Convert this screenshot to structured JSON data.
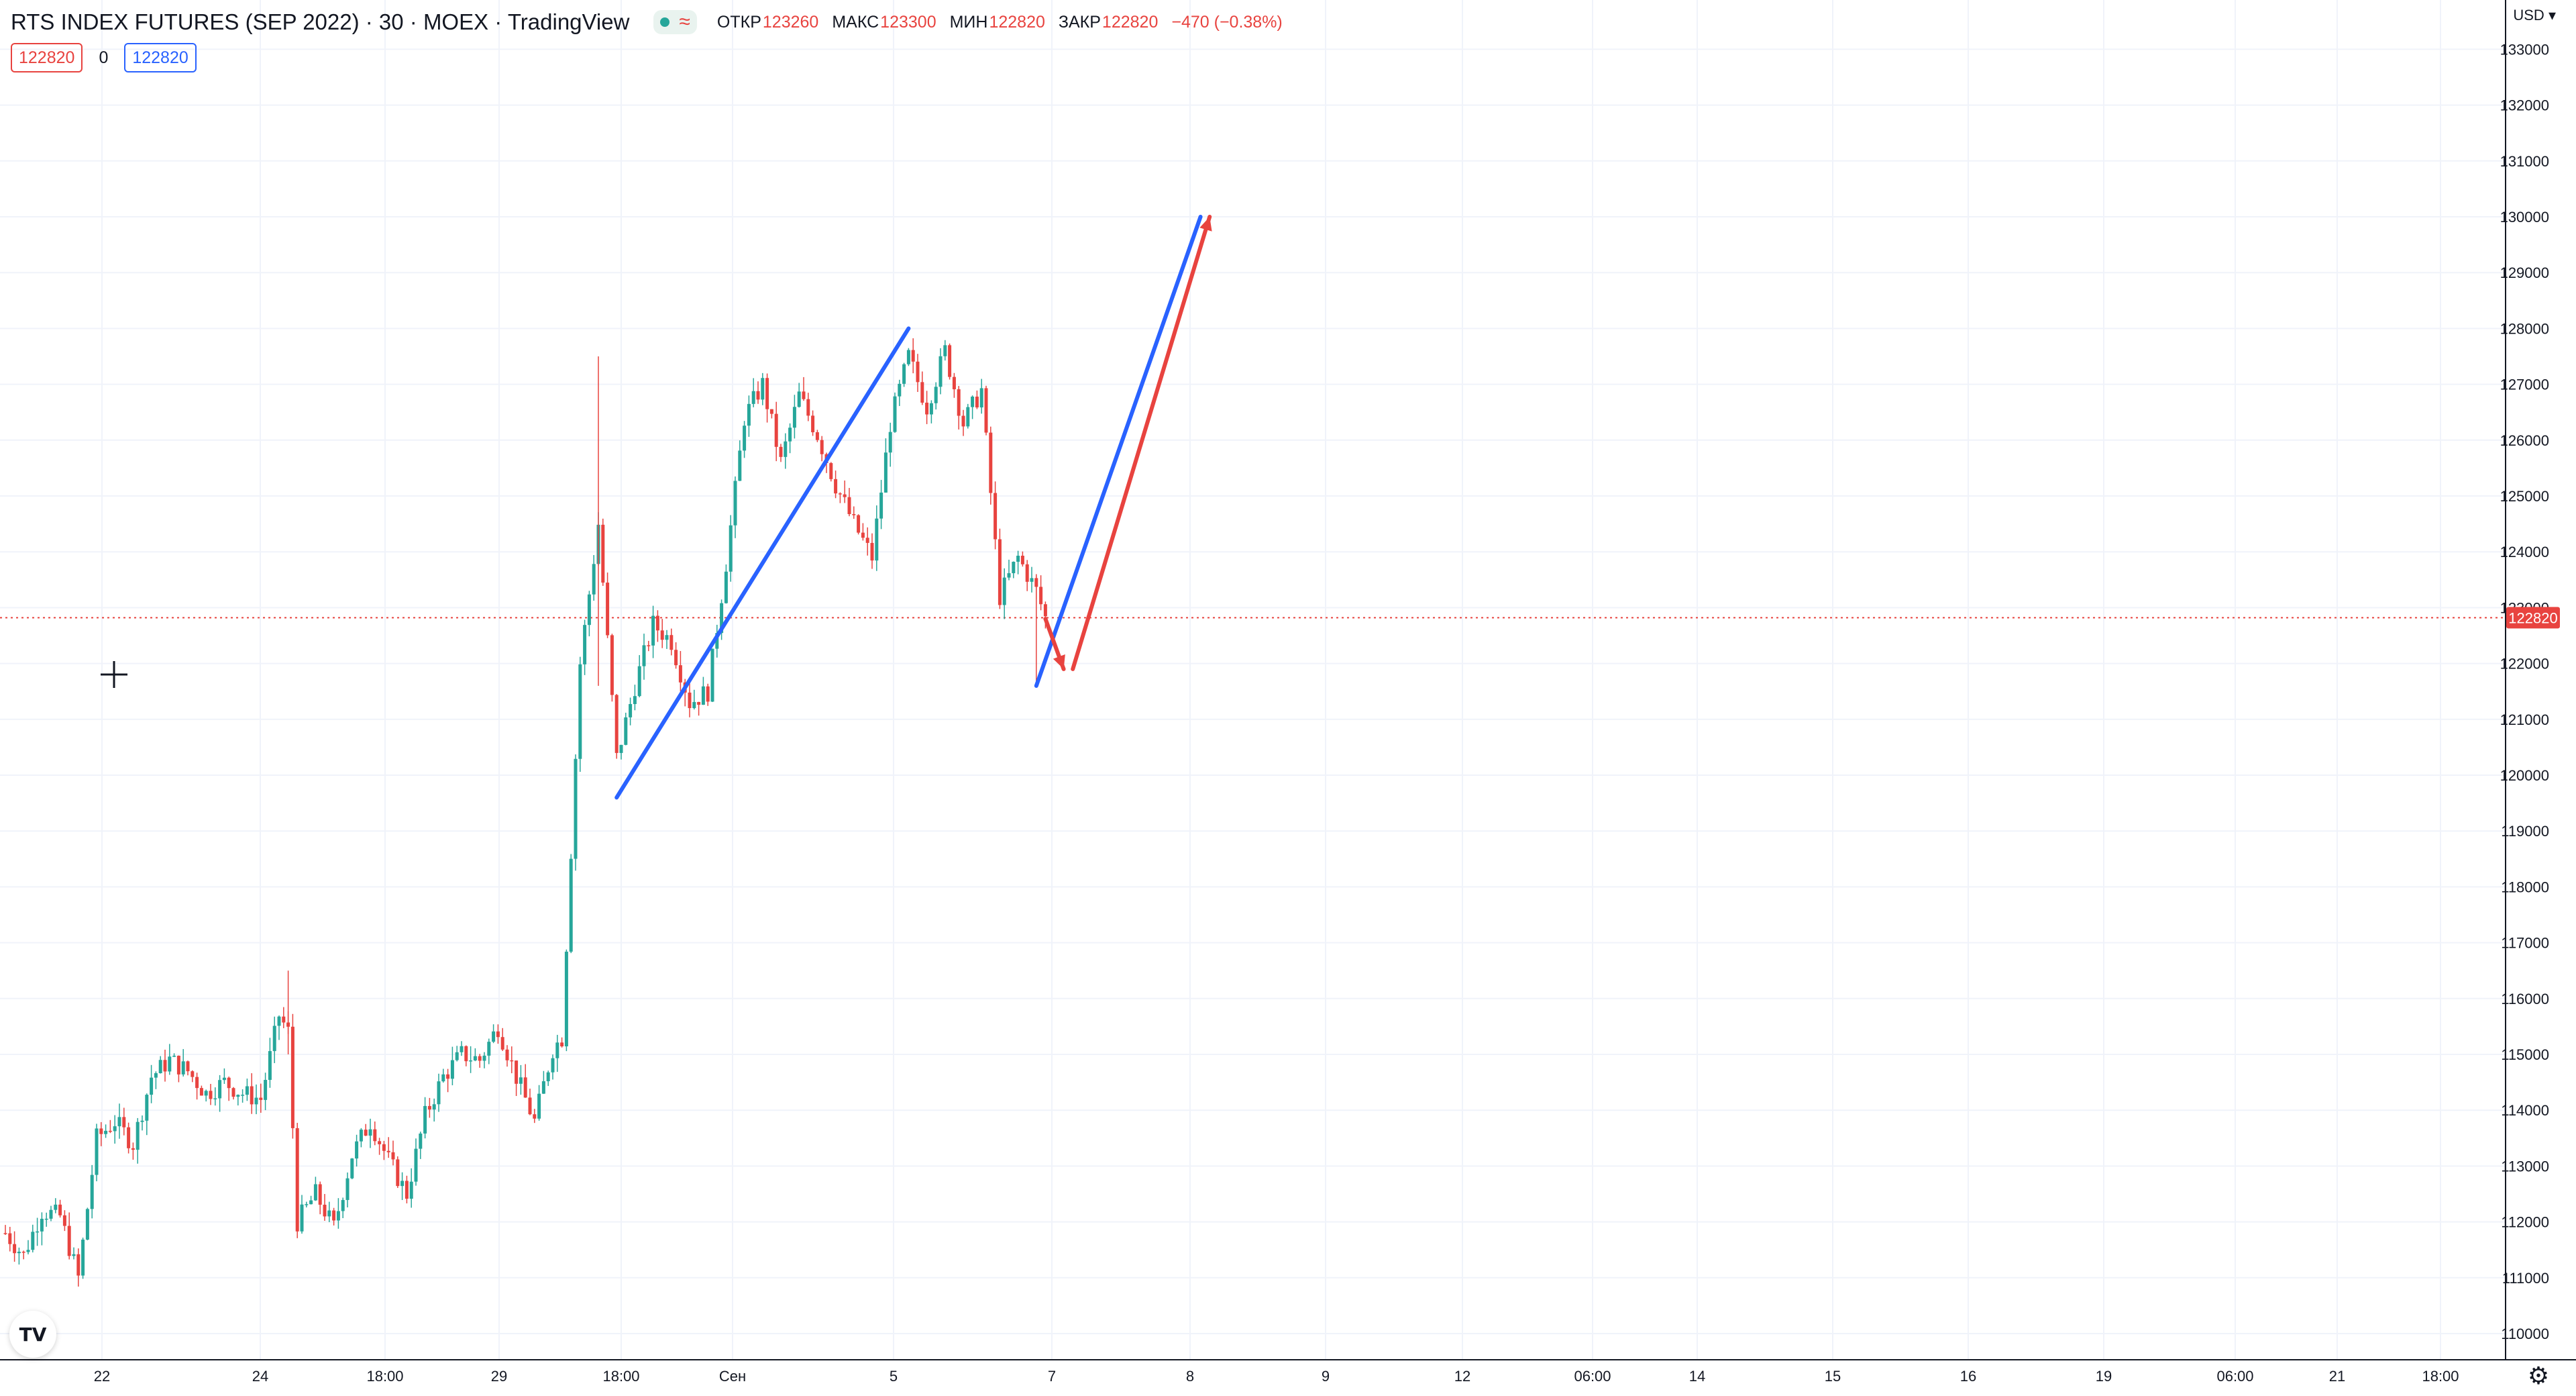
{
  "legend": {
    "title": "RTS INDEX FUTURES (SEP 2022) · 30 · MOEX · TradingView",
    "open_label": "ОТКР",
    "open": "123260",
    "high_label": "МАКС",
    "high": "123300",
    "low_label": "МИН",
    "low": "122820",
    "close_label": "ЗАКР",
    "close": "122820",
    "change": "−470 (−0.38%)"
  },
  "quote": {
    "sell": "122820",
    "spread": "0",
    "buy": "122820"
  },
  "price_axis": {
    "currency": "USD"
  },
  "current_price_label": "122820",
  "icons": {
    "logo": "tradingview-logo-icon",
    "settings": "gear-icon",
    "crosshair": "crosshair-icon"
  },
  "colors": {
    "up": "#26a69a",
    "down": "#e8433f",
    "blue_line": "#2962ff",
    "red_arrow": "#e8433f",
    "price_line": "#e8433f"
  },
  "chart_data": {
    "type": "candlestick",
    "title": "RTS INDEX FUTURES (SEP 2022) · 30 · MOEX · TradingView",
    "y_ticks": [
      110000,
      111000,
      112000,
      113000,
      114000,
      115000,
      116000,
      117000,
      118000,
      119000,
      120000,
      121000,
      122000,
      123000,
      124000,
      125000,
      126000,
      127000,
      128000,
      129000,
      130000,
      131000,
      132000,
      133000
    ],
    "x_ticks": [
      "22",
      "24",
      "18:00",
      "29",
      "18:00",
      "Сен",
      "5",
      "7",
      "8",
      "9",
      "12",
      "06:00",
      "14",
      "15",
      "16",
      "19",
      "06:00",
      "21",
      "18:00"
    ],
    "ylim": [
      109500,
      133500
    ],
    "grid": true,
    "current_price": 122820,
    "price_path": [
      {
        "t": 0,
        "p": 111800
      },
      {
        "t": 2,
        "p": 111400
      },
      {
        "t": 4,
        "p": 112200
      },
      {
        "t": 6,
        "p": 112100
      },
      {
        "t": 8,
        "p": 111000
      },
      {
        "t": 10,
        "p": 113500
      },
      {
        "t": 12,
        "p": 113800
      },
      {
        "t": 14,
        "p": 113400
      },
      {
        "t": 16,
        "p": 114600
      },
      {
        "t": 18,
        "p": 114900
      },
      {
        "t": 20,
        "p": 114700
      },
      {
        "t": 22,
        "p": 114300
      },
      {
        "t": 24,
        "p": 114500
      },
      {
        "t": 26,
        "p": 114300
      },
      {
        "t": 28,
        "p": 114200
      },
      {
        "t": 30,
        "p": 115700
      },
      {
        "t": 31,
        "p": 115400
      },
      {
        "t": 32,
        "p": 112000
      },
      {
        "t": 34,
        "p": 112500
      },
      {
        "t": 36,
        "p": 111900
      },
      {
        "t": 38,
        "p": 113200
      },
      {
        "t": 40,
        "p": 113800
      },
      {
        "t": 42,
        "p": 113100
      },
      {
        "t": 44,
        "p": 112500
      },
      {
        "t": 46,
        "p": 113900
      },
      {
        "t": 48,
        "p": 114600
      },
      {
        "t": 50,
        "p": 115000
      },
      {
        "t": 52,
        "p": 114900
      },
      {
        "t": 54,
        "p": 115500
      },
      {
        "t": 56,
        "p": 114600
      },
      {
        "t": 58,
        "p": 113800
      },
      {
        "t": 60,
        "p": 115100
      },
      {
        "t": 61,
        "p": 115300
      },
      {
        "t": 63,
        "p": 122000
      },
      {
        "t": 65,
        "p": 124500
      },
      {
        "t": 67,
        "p": 120300
      },
      {
        "t": 69,
        "p": 121600
      },
      {
        "t": 71,
        "p": 122700
      },
      {
        "t": 73,
        "p": 122400
      },
      {
        "t": 75,
        "p": 121300
      },
      {
        "t": 77,
        "p": 121500
      },
      {
        "t": 79,
        "p": 123800
      },
      {
        "t": 81,
        "p": 126400
      },
      {
        "t": 83,
        "p": 127000
      },
      {
        "t": 85,
        "p": 125600
      },
      {
        "t": 87,
        "p": 126800
      },
      {
        "t": 89,
        "p": 126100
      },
      {
        "t": 91,
        "p": 125200
      },
      {
        "t": 93,
        "p": 124500
      },
      {
        "t": 95,
        "p": 123900
      },
      {
        "t": 97,
        "p": 126300
      },
      {
        "t": 99,
        "p": 127500
      },
      {
        "t": 101,
        "p": 126600
      },
      {
        "t": 103,
        "p": 127600
      },
      {
        "t": 105,
        "p": 126300
      },
      {
        "t": 107,
        "p": 126900
      },
      {
        "t": 109,
        "p": 123200
      },
      {
        "t": 111,
        "p": 123900
      },
      {
        "t": 113,
        "p": 123300
      },
      {
        "t": 114,
        "p": 122820
      }
    ],
    "drawings": [
      {
        "type": "trend_line",
        "color": "blue",
        "from": {
          "bar": 67,
          "price": 119600
        },
        "to": {
          "bar": 99,
          "price": 128000
        }
      },
      {
        "type": "trend_line",
        "color": "blue",
        "from": {
          "bar": 113,
          "price": 121600
        },
        "to": {
          "bar": 131,
          "price": 130000
        }
      },
      {
        "type": "arrow",
        "color": "red",
        "from": {
          "bar": 114,
          "price": 122800
        },
        "to": {
          "bar": 116,
          "price": 121900
        }
      },
      {
        "type": "arrow",
        "color": "red",
        "from": {
          "bar": 117,
          "price": 121900
        },
        "to": {
          "bar": 132,
          "price": 130000
        }
      }
    ]
  }
}
